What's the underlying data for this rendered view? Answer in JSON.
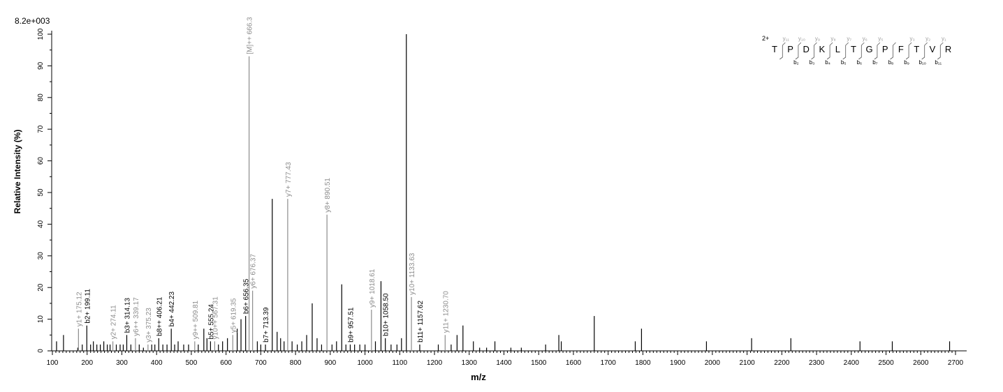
{
  "chart_data": {
    "type": "bar",
    "scale_label": "8.2e+003",
    "xlabel": "m/z",
    "ylabel": "Relative  Intensity (%)",
    "xlim": [
      100,
      2700
    ],
    "ylim": [
      0,
      100
    ],
    "x_ticks": [
      100,
      200,
      300,
      400,
      500,
      600,
      700,
      800,
      900,
      1000,
      1100,
      1200,
      1300,
      1400,
      1500,
      1600,
      1700,
      1800,
      1900,
      2000,
      2100,
      2200,
      2300,
      2400,
      2500,
      2600,
      2700
    ],
    "y_ticks": [
      0,
      10,
      20,
      30,
      40,
      50,
      60,
      70,
      80,
      90,
      100
    ],
    "colors": {
      "b_ion": "#000000",
      "y_ion": "#8c8c8c",
      "peak": "#000000"
    },
    "peaks": [
      {
        "mz": 112,
        "i": 3
      },
      {
        "mz": 132,
        "i": 5
      },
      {
        "mz": 173,
        "i": 1
      },
      {
        "mz": 175.12,
        "i": 7,
        "label": "y1+ 175.12",
        "ion": "y"
      },
      {
        "mz": 186,
        "i": 2
      },
      {
        "mz": 199.11,
        "i": 8,
        "label": "b2+ 199.11",
        "ion": "b"
      },
      {
        "mz": 210,
        "i": 2
      },
      {
        "mz": 218,
        "i": 3
      },
      {
        "mz": 228,
        "i": 2
      },
      {
        "mz": 238,
        "i": 2
      },
      {
        "mz": 248,
        "i": 3
      },
      {
        "mz": 258,
        "i": 2
      },
      {
        "mz": 266,
        "i": 2
      },
      {
        "mz": 274.11,
        "i": 3,
        "label": "y2+ 274.11",
        "ion": "y"
      },
      {
        "mz": 284,
        "i": 2
      },
      {
        "mz": 295,
        "i": 2
      },
      {
        "mz": 304,
        "i": 2
      },
      {
        "mz": 314.13,
        "i": 5,
        "label": "b3+ 314.13",
        "ion": "b"
      },
      {
        "mz": 326,
        "i": 2
      },
      {
        "mz": 339.17,
        "i": 4,
        "label": "y6++ 339.17",
        "ion": "y"
      },
      {
        "mz": 350,
        "i": 2
      },
      {
        "mz": 362,
        "i": 1
      },
      {
        "mz": 375.23,
        "i": 2,
        "label": "y3+ 375.23",
        "ion": "y"
      },
      {
        "mz": 386,
        "i": 2
      },
      {
        "mz": 395,
        "i": 2
      },
      {
        "mz": 406.21,
        "i": 4,
        "label": "b8++ 406.21",
        "ion": "b"
      },
      {
        "mz": 418,
        "i": 2
      },
      {
        "mz": 430,
        "i": 2
      },
      {
        "mz": 442.23,
        "i": 7,
        "label": "b4+ 442.23",
        "ion": "b"
      },
      {
        "mz": 452,
        "i": 2
      },
      {
        "mz": 462,
        "i": 3
      },
      {
        "mz": 478,
        "i": 2
      },
      {
        "mz": 492,
        "i": 2
      },
      {
        "mz": 509.81,
        "i": 3,
        "label": "y9++ 509.81",
        "ion": "y"
      },
      {
        "mz": 520,
        "i": 2
      },
      {
        "mz": 536,
        "i": 7
      },
      {
        "mz": 545,
        "i": 4
      },
      {
        "mz": 555.24,
        "i": 3,
        "label": "b5+ 555.24",
        "ion": "b"
      },
      {
        "mz": 567.31,
        "i": 3,
        "label": "y10++ 567.31",
        "ion": "y"
      },
      {
        "mz": 578,
        "i": 2
      },
      {
        "mz": 590,
        "i": 3
      },
      {
        "mz": 604,
        "i": 4
      },
      {
        "mz": 619.35,
        "i": 5,
        "label": "y5+ 619.35",
        "ion": "y"
      },
      {
        "mz": 632,
        "i": 7
      },
      {
        "mz": 643,
        "i": 10
      },
      {
        "mz": 656.35,
        "i": 11,
        "label": "b6+ 656.35",
        "ion": "b"
      },
      {
        "mz": 666.3,
        "i": 93,
        "label": "[M]++ 666.3",
        "ion": "y"
      },
      {
        "mz": 676.37,
        "i": 19,
        "label": "y6+ 676.37",
        "ion": "y"
      },
      {
        "mz": 690,
        "i": 3
      },
      {
        "mz": 700,
        "i": 2
      },
      {
        "mz": 713.39,
        "i": 2,
        "label": "b7+ 713.39",
        "ion": "b"
      },
      {
        "mz": 733,
        "i": 48
      },
      {
        "mz": 747,
        "i": 6
      },
      {
        "mz": 757,
        "i": 4
      },
      {
        "mz": 767,
        "i": 3
      },
      {
        "mz": 777.43,
        "i": 48,
        "label": "y7+ 777.43",
        "ion": "y"
      },
      {
        "mz": 790,
        "i": 3
      },
      {
        "mz": 805,
        "i": 2
      },
      {
        "mz": 818,
        "i": 3
      },
      {
        "mz": 832,
        "i": 5
      },
      {
        "mz": 848,
        "i": 15
      },
      {
        "mz": 862,
        "i": 4
      },
      {
        "mz": 875,
        "i": 2
      },
      {
        "mz": 890.51,
        "i": 43,
        "label": "y8+ 890.51",
        "ion": "y"
      },
      {
        "mz": 905,
        "i": 2
      },
      {
        "mz": 918,
        "i": 3
      },
      {
        "mz": 933,
        "i": 21
      },
      {
        "mz": 945,
        "i": 2
      },
      {
        "mz": 957.51,
        "i": 2,
        "label": "b9+ 957.51",
        "ion": "b"
      },
      {
        "mz": 970,
        "i": 2
      },
      {
        "mz": 985,
        "i": 2
      },
      {
        "mz": 1000,
        "i": 2
      },
      {
        "mz": 1018.61,
        "i": 13,
        "label": "y9+ 1018.61",
        "ion": "y"
      },
      {
        "mz": 1030,
        "i": 3
      },
      {
        "mz": 1046,
        "i": 22
      },
      {
        "mz": 1058.5,
        "i": 4,
        "label": "b10+ 1058.50",
        "ion": "b"
      },
      {
        "mz": 1075,
        "i": 2
      },
      {
        "mz": 1092,
        "i": 2
      },
      {
        "mz": 1105,
        "i": 4
      },
      {
        "mz": 1119,
        "i": 100
      },
      {
        "mz": 1133.63,
        "i": 17,
        "label": "y10+ 1133.63",
        "ion": "y"
      },
      {
        "mz": 1157.62,
        "i": 2,
        "label": "b11+ 1157.62",
        "ion": "b"
      },
      {
        "mz": 1211,
        "i": 2
      },
      {
        "mz": 1230.7,
        "i": 5,
        "label": "y11+ 1230.70",
        "ion": "y"
      },
      {
        "mz": 1248,
        "i": 2
      },
      {
        "mz": 1265,
        "i": 5
      },
      {
        "mz": 1282,
        "i": 8
      },
      {
        "mz": 1312,
        "i": 3
      },
      {
        "mz": 1330,
        "i": 1
      },
      {
        "mz": 1350,
        "i": 1
      },
      {
        "mz": 1374,
        "i": 3
      },
      {
        "mz": 1420,
        "i": 1
      },
      {
        "mz": 1450,
        "i": 1
      },
      {
        "mz": 1520,
        "i": 2
      },
      {
        "mz": 1558,
        "i": 5
      },
      {
        "mz": 1565,
        "i": 3
      },
      {
        "mz": 1660,
        "i": 11
      },
      {
        "mz": 1778,
        "i": 3
      },
      {
        "mz": 1796,
        "i": 7
      },
      {
        "mz": 1983,
        "i": 3
      },
      {
        "mz": 2113,
        "i": 4
      },
      {
        "mz": 2226,
        "i": 4
      },
      {
        "mz": 2425,
        "i": 3
      },
      {
        "mz": 2518,
        "i": 3
      },
      {
        "mz": 2683,
        "i": 3
      }
    ],
    "sequence": {
      "charge": "2+",
      "residues": [
        "T",
        "P",
        "D",
        "K",
        "L",
        "T",
        "G",
        "P",
        "F",
        "T",
        "V",
        "R"
      ],
      "y_labels": [
        "y₁₁",
        "y₁₀",
        "y₉",
        "y₈",
        "y₇",
        "y₆",
        "y₅",
        "",
        "y₃",
        "y₂",
        "y₁"
      ],
      "b_labels": [
        "b₂",
        "b₃",
        "b₄",
        "b₅",
        "b₆",
        "b₇",
        "b₈",
        "b₉",
        "b₁₀",
        "b₁₁"
      ]
    }
  }
}
